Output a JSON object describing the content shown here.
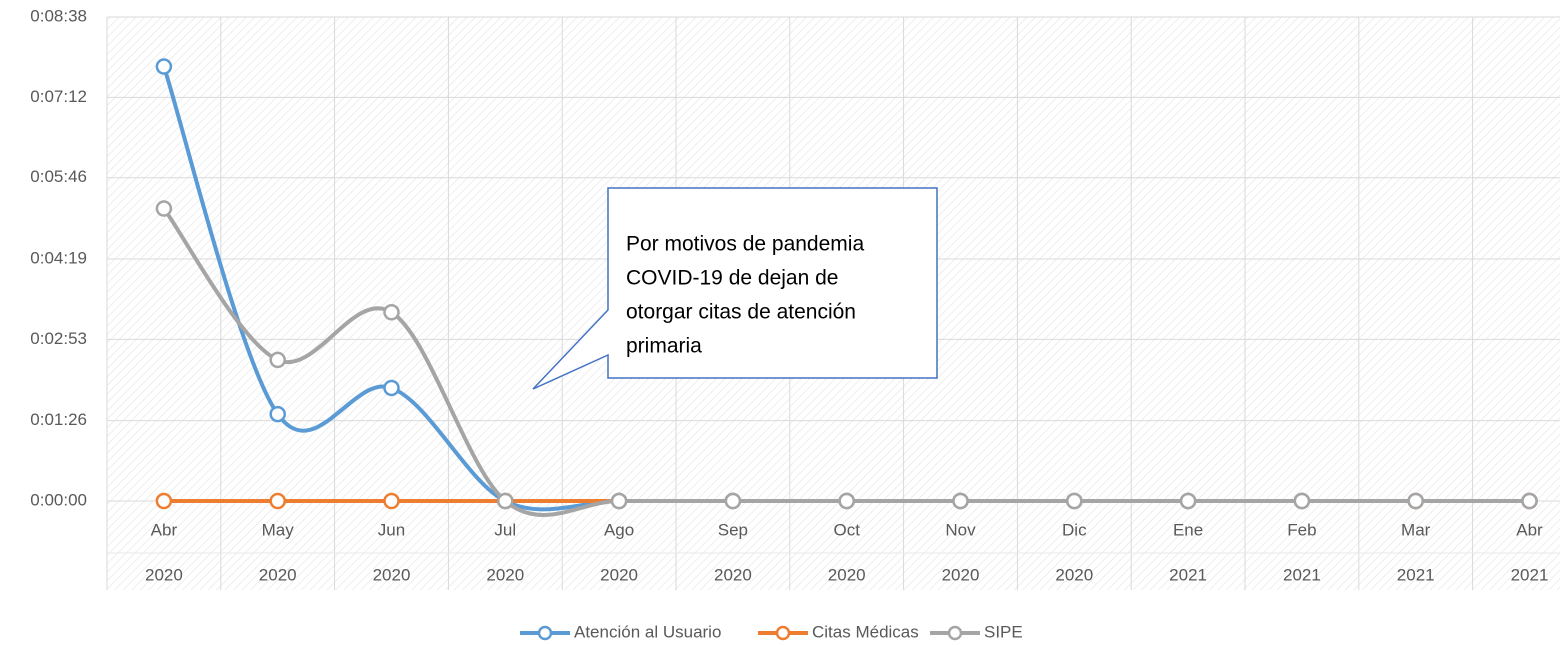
{
  "chart_data": {
    "type": "line",
    "categories": [
      "Abr",
      "May",
      "Jun",
      "Jul",
      "Ago",
      "Sep",
      "Oct",
      "Nov",
      "Dic",
      "Ene",
      "Feb",
      "Mar",
      "Abr"
    ],
    "years": [
      "2020",
      "2020",
      "2020",
      "2020",
      "2020",
      "2020",
      "2020",
      "2020",
      "2020",
      "2021",
      "2021",
      "2021",
      "2021"
    ],
    "series": [
      {
        "name": "Atención al Usuario",
        "color": "#5b9bd5",
        "values": [
          465,
          93,
          121,
          0,
          0,
          0,
          0,
          0,
          0,
          0,
          0,
          0,
          0
        ]
      },
      {
        "name": "Citas Médicas",
        "color": "#ed7d31",
        "values": [
          0,
          0,
          0,
          0,
          0,
          0,
          0,
          0,
          0,
          0,
          0,
          0,
          0
        ]
      },
      {
        "name": "SIPE",
        "color": "#a5a5a5",
        "values": [
          313,
          151,
          202,
          0,
          0,
          0,
          0,
          0,
          0,
          0,
          0,
          0,
          0
        ]
      }
    ],
    "ylim": [
      0,
      518
    ],
    "yticks": [
      {
        "value": 0,
        "label": "0:00:00"
      },
      {
        "value": 86,
        "label": "0:01:26"
      },
      {
        "value": 173,
        "label": "0:02:53"
      },
      {
        "value": 259,
        "label": "0:04:19"
      },
      {
        "value": 346,
        "label": "0:05:46"
      },
      {
        "value": 432,
        "label": "0:07:12"
      },
      {
        "value": 518,
        "label": "0:08:38"
      }
    ],
    "grid": true,
    "smooth": true,
    "legend": "bottom",
    "annotation": [
      "Por motivos de pandemia",
      "COVID-19 de dejan de",
      "otorgar citas de atención",
      "primaria"
    ]
  }
}
